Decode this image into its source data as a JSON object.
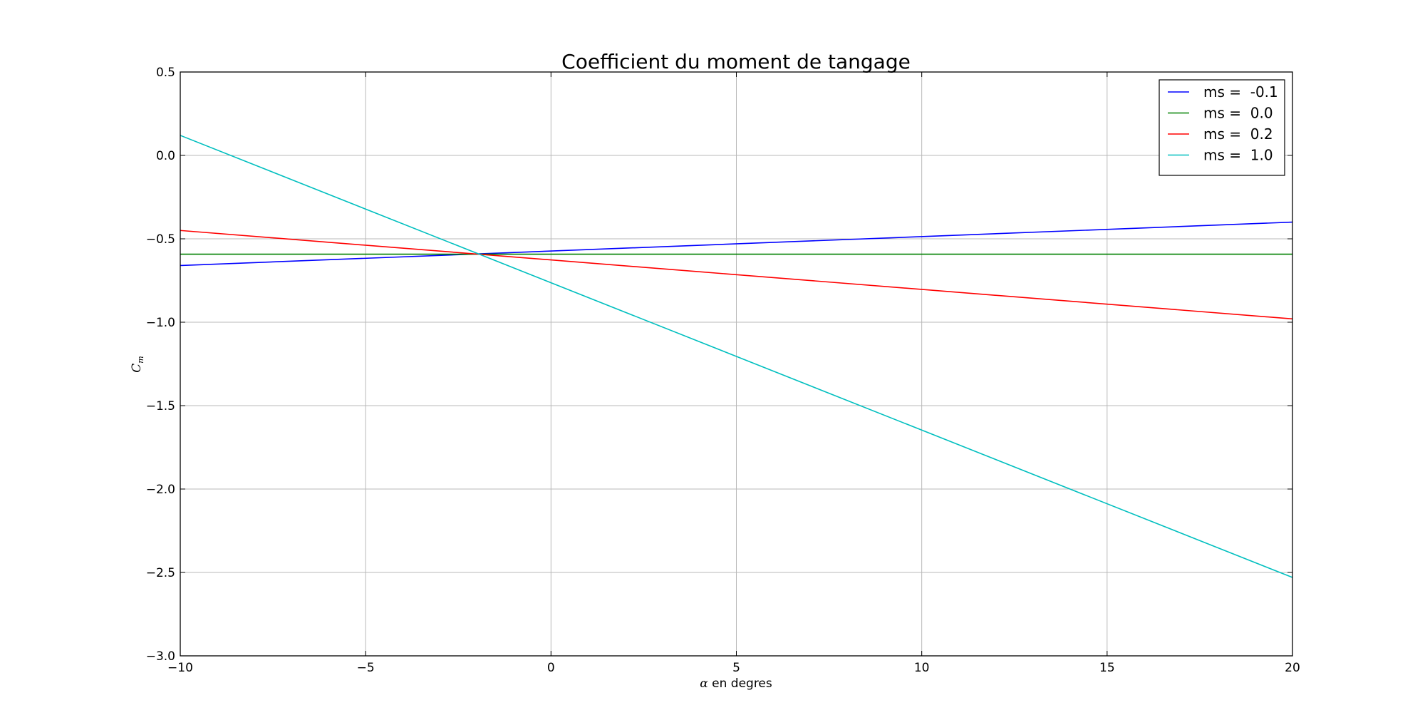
{
  "chart_data": {
    "type": "line",
    "title": "Coefficient du moment de tangage",
    "xlabel": {
      "symbol": "α",
      "text": " en degres"
    },
    "ylabel": {
      "symbol": "C",
      "subscript": "m"
    },
    "xlim": [
      -10,
      20
    ],
    "ylim": [
      -3.0,
      0.5
    ],
    "xticks": [
      -10,
      -5,
      0,
      5,
      10,
      15,
      20
    ],
    "xtick_labels": [
      "−10",
      "−5",
      "0",
      "5",
      "10",
      "15",
      "20"
    ],
    "yticks": [
      0.5,
      0.0,
      -0.5,
      -1.0,
      -1.5,
      -2.0,
      -2.5,
      -3.0
    ],
    "ytick_labels": [
      "0.5",
      "0.0",
      "−0.5",
      "−1.0",
      "−1.5",
      "−2.0",
      "−2.5",
      "−3.0"
    ],
    "grid": true,
    "legend_position": "top-right",
    "series": [
      {
        "name": "ms =  -0.1",
        "color": "#0000ff",
        "x": [
          -10,
          20
        ],
        "y": [
          -0.66,
          -0.4
        ]
      },
      {
        "name": "ms =  0.0",
        "color": "#008000",
        "x": [
          -10,
          20
        ],
        "y": [
          -0.592,
          -0.592
        ]
      },
      {
        "name": "ms =  0.2",
        "color": "#ff0000",
        "x": [
          -10,
          20
        ],
        "y": [
          -0.45,
          -0.98
        ]
      },
      {
        "name": "ms =  1.0",
        "color": "#00bfbf",
        "x": [
          -10,
          20
        ],
        "y": [
          0.12,
          -2.53
        ]
      }
    ]
  }
}
